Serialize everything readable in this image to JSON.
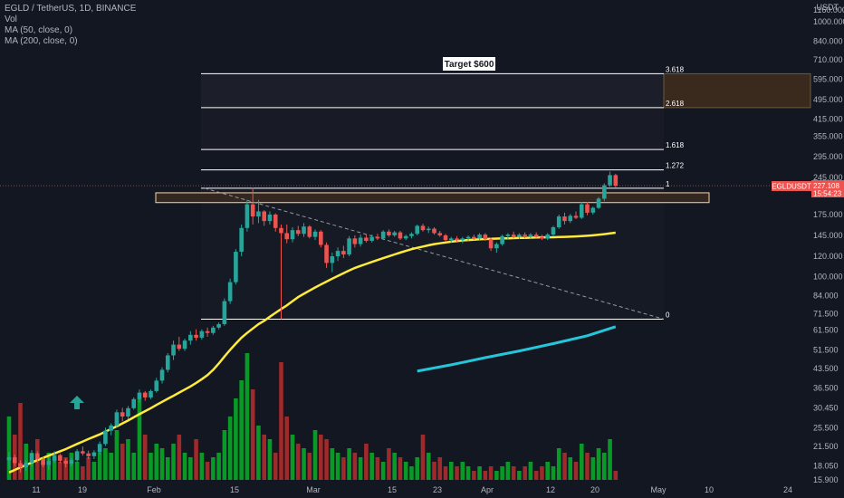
{
  "legend": {
    "title": "EGLD / TetherUS, 1D, BINANCE",
    "vol": "Vol",
    "ma50": "MA (50, close, 0)",
    "ma200": "MA (200, close, 0)"
  },
  "price_badge": {
    "symbol": "EGLDUSDT",
    "price": "227.108",
    "countdown": "15:54:23",
    "color": "#ef5350"
  },
  "target_label": "Target $600",
  "currency": "USDT",
  "colors": {
    "background": "#131722",
    "up": "#26a69a",
    "down": "#ef5350",
    "vol_up": "#089926",
    "vol_down": "#9e2a2b",
    "ma50": "#ffeb3b",
    "ma200": "#26c6da",
    "zone_fill": "#3a2a1e",
    "zone_border": "#f5d6a8",
    "grid": "#1e222d",
    "arrow": "#26a69a"
  },
  "chart_data": {
    "type": "candlestick",
    "scale": "log",
    "y_ticks": [
      1160.0,
      1000.0,
      840.0,
      710.0,
      595.0,
      495.0,
      415.0,
      355.0,
      295.0,
      245.0,
      210.0,
      175.0,
      145.0,
      120.0,
      100.0,
      84.0,
      71.5,
      61.5,
      51.5,
      43.5,
      36.5,
      30.45,
      25.5,
      21.5,
      18.05,
      15.9
    ],
    "x_ticks": [
      "11",
      "19",
      "Feb",
      "15",
      "Mar",
      "15",
      "23",
      "Apr",
      "12",
      "20",
      "May",
      "10",
      "24"
    ],
    "fib_levels": [
      {
        "label": "0",
        "value": 68
      },
      {
        "label": "1",
        "value": 222
      },
      {
        "label": "1.272",
        "value": 262
      },
      {
        "label": "1.618",
        "value": 315
      },
      {
        "label": "2.618",
        "value": 460
      },
      {
        "label": "3.618",
        "value": 625
      }
    ],
    "candles": [
      {
        "o": 19.0,
        "h": 20.5,
        "l": 17.5,
        "c": 19.5
      },
      {
        "o": 19.5,
        "h": 20.0,
        "l": 18.0,
        "c": 18.5
      },
      {
        "o": 18.5,
        "h": 19.0,
        "l": 17.0,
        "c": 17.8
      },
      {
        "o": 17.8,
        "h": 19.0,
        "l": 17.2,
        "c": 18.6
      },
      {
        "o": 18.6,
        "h": 20.8,
        "l": 18.0,
        "c": 20.2
      },
      {
        "o": 20.2,
        "h": 20.6,
        "l": 18.6,
        "c": 19.2
      },
      {
        "o": 19.2,
        "h": 19.6,
        "l": 17.8,
        "c": 18.2
      },
      {
        "o": 18.2,
        "h": 19.5,
        "l": 17.4,
        "c": 18.9
      },
      {
        "o": 18.9,
        "h": 20.6,
        "l": 18.5,
        "c": 19.9
      },
      {
        "o": 19.9,
        "h": 20.2,
        "l": 18.5,
        "c": 18.9
      },
      {
        "o": 18.9,
        "h": 19.3,
        "l": 17.8,
        "c": 18.4
      },
      {
        "o": 18.4,
        "h": 19.4,
        "l": 18.0,
        "c": 19.0
      },
      {
        "o": 19.0,
        "h": 21.0,
        "l": 18.7,
        "c": 20.6
      },
      {
        "o": 20.6,
        "h": 21.5,
        "l": 19.8,
        "c": 20.2
      },
      {
        "o": 20.2,
        "h": 20.7,
        "l": 19.2,
        "c": 19.7
      },
      {
        "o": 19.7,
        "h": 20.8,
        "l": 19.2,
        "c": 20.4
      },
      {
        "o": 20.4,
        "h": 22.5,
        "l": 20.0,
        "c": 22.0
      },
      {
        "o": 22.0,
        "h": 25.5,
        "l": 21.6,
        "c": 24.8
      },
      {
        "o": 24.8,
        "h": 26.5,
        "l": 23.8,
        "c": 26.0
      },
      {
        "o": 26.0,
        "h": 30.0,
        "l": 25.5,
        "c": 29.3
      },
      {
        "o": 29.3,
        "h": 30.5,
        "l": 27.0,
        "c": 28.2
      },
      {
        "o": 28.2,
        "h": 31.0,
        "l": 27.5,
        "c": 30.4
      },
      {
        "o": 30.4,
        "h": 33.5,
        "l": 30.0,
        "c": 33.0
      },
      {
        "o": 33.0,
        "h": 36.0,
        "l": 32.0,
        "c": 35.0
      },
      {
        "o": 35.0,
        "h": 35.5,
        "l": 32.5,
        "c": 33.5
      },
      {
        "o": 33.5,
        "h": 36.0,
        "l": 33.0,
        "c": 35.5
      },
      {
        "o": 35.5,
        "h": 40.0,
        "l": 35.0,
        "c": 39.0
      },
      {
        "o": 39.0,
        "h": 44.0,
        "l": 38.0,
        "c": 43.0
      },
      {
        "o": 43.0,
        "h": 50.0,
        "l": 42.0,
        "c": 49.0
      },
      {
        "o": 49.0,
        "h": 56.0,
        "l": 47.0,
        "c": 54.0
      },
      {
        "o": 54.0,
        "h": 58.0,
        "l": 51.0,
        "c": 52.0
      },
      {
        "o": 52.0,
        "h": 57.0,
        "l": 51.0,
        "c": 56.0
      },
      {
        "o": 56.0,
        "h": 61.0,
        "l": 54.0,
        "c": 59.0
      },
      {
        "o": 59.0,
        "h": 62.0,
        "l": 56.0,
        "c": 57.5
      },
      {
        "o": 57.5,
        "h": 62.0,
        "l": 56.5,
        "c": 61.0
      },
      {
        "o": 61.0,
        "h": 63.0,
        "l": 58.0,
        "c": 60.0
      },
      {
        "o": 60.0,
        "h": 64.0,
        "l": 59.0,
        "c": 63.0
      },
      {
        "o": 63.0,
        "h": 66.0,
        "l": 62.0,
        "c": 65.0
      },
      {
        "o": 65.0,
        "h": 82.0,
        "l": 64.0,
        "c": 80.0
      },
      {
        "o": 80.0,
        "h": 98.0,
        "l": 78.0,
        "c": 95.0
      },
      {
        "o": 95.0,
        "h": 128.0,
        "l": 93.0,
        "c": 125.0
      },
      {
        "o": 125.0,
        "h": 160.0,
        "l": 120.0,
        "c": 155.0
      },
      {
        "o": 155.0,
        "h": 200.0,
        "l": 150.0,
        "c": 192.0
      },
      {
        "o": 192.0,
        "h": 223.0,
        "l": 160.0,
        "c": 172.0
      },
      {
        "o": 172.0,
        "h": 200.0,
        "l": 162.0,
        "c": 180.0
      },
      {
        "o": 180.0,
        "h": 182.0,
        "l": 158.0,
        "c": 165.0
      },
      {
        "o": 165.0,
        "h": 180.0,
        "l": 160.0,
        "c": 175.0
      },
      {
        "o": 175.0,
        "h": 177.0,
        "l": 150.0,
        "c": 155.0
      },
      {
        "o": 155.0,
        "h": 160.0,
        "l": 68.0,
        "c": 148.0
      },
      {
        "o": 148.0,
        "h": 160.0,
        "l": 135.0,
        "c": 140.0
      },
      {
        "o": 140.0,
        "h": 156.0,
        "l": 136.0,
        "c": 152.0
      },
      {
        "o": 152.0,
        "h": 158.0,
        "l": 144.0,
        "c": 147.0
      },
      {
        "o": 147.0,
        "h": 162.0,
        "l": 143.0,
        "c": 157.0
      },
      {
        "o": 157.0,
        "h": 159.0,
        "l": 141.0,
        "c": 143.0
      },
      {
        "o": 143.0,
        "h": 153.0,
        "l": 139.0,
        "c": 150.0
      },
      {
        "o": 150.0,
        "h": 152.0,
        "l": 130.0,
        "c": 133.0
      },
      {
        "o": 133.0,
        "h": 136.0,
        "l": 108.0,
        "c": 113.0
      },
      {
        "o": 113.0,
        "h": 124.0,
        "l": 104.0,
        "c": 120.0
      },
      {
        "o": 120.0,
        "h": 130.0,
        "l": 115.0,
        "c": 126.0
      },
      {
        "o": 126.0,
        "h": 132.0,
        "l": 118.0,
        "c": 122.0
      },
      {
        "o": 122.0,
        "h": 144.0,
        "l": 120.0,
        "c": 141.0
      },
      {
        "o": 141.0,
        "h": 145.0,
        "l": 130.0,
        "c": 134.0
      },
      {
        "o": 134.0,
        "h": 146.0,
        "l": 131.0,
        "c": 142.0
      },
      {
        "o": 142.0,
        "h": 146.0,
        "l": 136.0,
        "c": 138.0
      },
      {
        "o": 138.0,
        "h": 146.0,
        "l": 136.0,
        "c": 143.0
      },
      {
        "o": 143.0,
        "h": 147.0,
        "l": 139.0,
        "c": 141.0
      },
      {
        "o": 141.0,
        "h": 152.0,
        "l": 139.0,
        "c": 150.0
      },
      {
        "o": 150.0,
        "h": 153.0,
        "l": 143.0,
        "c": 145.0
      },
      {
        "o": 145.0,
        "h": 151.0,
        "l": 143.0,
        "c": 149.0
      },
      {
        "o": 149.0,
        "h": 151.0,
        "l": 139.0,
        "c": 141.0
      },
      {
        "o": 141.0,
        "h": 146.0,
        "l": 139.0,
        "c": 144.0
      },
      {
        "o": 144.0,
        "h": 149.0,
        "l": 141.0,
        "c": 147.0
      },
      {
        "o": 147.0,
        "h": 160.0,
        "l": 145.0,
        "c": 158.0
      },
      {
        "o": 158.0,
        "h": 161.0,
        "l": 150.0,
        "c": 152.0
      },
      {
        "o": 152.0,
        "h": 157.0,
        "l": 148.0,
        "c": 154.0
      },
      {
        "o": 154.0,
        "h": 156.0,
        "l": 146.0,
        "c": 148.0
      },
      {
        "o": 148.0,
        "h": 151.0,
        "l": 143.0,
        "c": 145.0
      },
      {
        "o": 145.0,
        "h": 147.0,
        "l": 137.0,
        "c": 139.0
      },
      {
        "o": 139.0,
        "h": 143.0,
        "l": 136.0,
        "c": 141.0
      },
      {
        "o": 141.0,
        "h": 144.0,
        "l": 137.0,
        "c": 139.0
      },
      {
        "o": 139.0,
        "h": 143.0,
        "l": 135.0,
        "c": 141.0
      },
      {
        "o": 141.0,
        "h": 145.0,
        "l": 138.0,
        "c": 143.0
      },
      {
        "o": 143.0,
        "h": 146.0,
        "l": 139.0,
        "c": 141.0
      },
      {
        "o": 141.0,
        "h": 148.0,
        "l": 139.0,
        "c": 146.0
      },
      {
        "o": 146.0,
        "h": 148.0,
        "l": 138.0,
        "c": 140.0
      },
      {
        "o": 140.0,
        "h": 142.0,
        "l": 126.0,
        "c": 129.0
      },
      {
        "o": 129.0,
        "h": 136.0,
        "l": 124.0,
        "c": 134.0
      },
      {
        "o": 134.0,
        "h": 146.0,
        "l": 132.0,
        "c": 144.0
      },
      {
        "o": 144.0,
        "h": 148.0,
        "l": 140.0,
        "c": 146.0
      },
      {
        "o": 146.0,
        "h": 150.0,
        "l": 141.0,
        "c": 143.0
      },
      {
        "o": 143.0,
        "h": 148.0,
        "l": 140.0,
        "c": 146.0
      },
      {
        "o": 146.0,
        "h": 149.0,
        "l": 141.0,
        "c": 144.0
      },
      {
        "o": 144.0,
        "h": 148.0,
        "l": 140.0,
        "c": 146.0
      },
      {
        "o": 146.0,
        "h": 149.0,
        "l": 142.0,
        "c": 143.0
      },
      {
        "o": 143.0,
        "h": 146.0,
        "l": 139.0,
        "c": 141.0
      },
      {
        "o": 141.0,
        "h": 148.0,
        "l": 139.0,
        "c": 146.0
      },
      {
        "o": 146.0,
        "h": 158.0,
        "l": 144.0,
        "c": 156.0
      },
      {
        "o": 156.0,
        "h": 175.0,
        "l": 154.0,
        "c": 172.0
      },
      {
        "o": 172.0,
        "h": 178.0,
        "l": 160.0,
        "c": 165.0
      },
      {
        "o": 165.0,
        "h": 176.0,
        "l": 162.0,
        "c": 173.0
      },
      {
        "o": 173.0,
        "h": 180.0,
        "l": 168.0,
        "c": 170.0
      },
      {
        "o": 170.0,
        "h": 196.0,
        "l": 168.0,
        "c": 192.0
      },
      {
        "o": 192.0,
        "h": 196.0,
        "l": 174.0,
        "c": 178.0
      },
      {
        "o": 178.0,
        "h": 188.0,
        "l": 175.0,
        "c": 186.0
      },
      {
        "o": 186.0,
        "h": 205.0,
        "l": 184.0,
        "c": 202.0
      },
      {
        "o": 202.0,
        "h": 232.0,
        "l": 198.0,
        "c": 228.0
      },
      {
        "o": 228.0,
        "h": 258.0,
        "l": 225.0,
        "c": 250.0
      },
      {
        "o": 250.0,
        "h": 253.0,
        "l": 224.0,
        "c": 227.108
      }
    ],
    "volumes": [
      0.7,
      0.5,
      0.85,
      0.4,
      0.3,
      0.45,
      0.25,
      0.3,
      0.25,
      0.2,
      0.25,
      0.3,
      0.2,
      0.15,
      0.25,
      0.2,
      0.3,
      0.35,
      0.3,
      0.55,
      0.4,
      0.45,
      0.3,
      0.9,
      0.5,
      0.3,
      0.4,
      0.35,
      0.25,
      0.4,
      0.5,
      0.3,
      0.25,
      0.45,
      0.3,
      0.2,
      0.25,
      0.3,
      0.55,
      0.7,
      0.9,
      1.1,
      1.4,
      1.0,
      0.6,
      0.5,
      0.45,
      0.3,
      1.3,
      0.7,
      0.5,
      0.4,
      0.35,
      0.3,
      0.55,
      0.5,
      0.45,
      0.35,
      0.3,
      0.25,
      0.35,
      0.3,
      0.25,
      0.4,
      0.3,
      0.25,
      0.2,
      0.35,
      0.3,
      0.25,
      0.2,
      0.15,
      0.25,
      0.5,
      0.3,
      0.2,
      0.25,
      0.15,
      0.2,
      0.15,
      0.2,
      0.15,
      0.1,
      0.15,
      0.1,
      0.15,
      0.1,
      0.15,
      0.2,
      0.15,
      0.1,
      0.15,
      0.2,
      0.1,
      0.15,
      0.2,
      0.15,
      0.35,
      0.3,
      0.25,
      0.2,
      0.4,
      0.3,
      0.25,
      0.35,
      0.3,
      0.45,
      0.1
    ],
    "ma50": [
      17.0,
      17.4,
      17.8,
      18.2,
      18.6,
      19.0,
      19.4,
      19.8,
      20.2,
      20.6,
      21.0,
      21.5,
      22.0,
      22.5,
      23.0,
      23.5,
      24.0,
      24.6,
      25.2,
      25.8,
      26.5,
      27.2,
      28.0,
      28.8,
      29.6,
      30.4,
      31.3,
      32.2,
      33.1,
      34.0,
      35.0,
      36.0,
      37.0,
      38.2,
      39.5,
      41.0,
      43.0,
      45.5,
      48.5,
      51.5,
      54.5,
      57.5,
      60.0,
      62.5,
      65.0,
      67.0,
      69.5,
      72.0,
      74.5,
      77.0,
      80.0,
      83.0,
      85.5,
      88.0,
      90.5,
      93.0,
      95.5,
      98.0,
      100.5,
      103.0,
      105.5,
      108.0,
      110.0,
      112.0,
      114.0,
      116.0,
      118.0,
      120.0,
      122.0,
      124.0,
      126.0,
      128.0,
      129.5,
      131.0,
      132.5,
      134.0,
      135.0,
      136.0,
      137.0,
      137.8,
      138.5,
      139.0,
      139.5,
      140.0,
      140.3,
      140.5,
      140.8,
      141.0,
      141.2,
      141.4,
      141.6,
      141.8,
      142.0,
      142.2,
      142.4,
      142.5,
      142.6,
      142.8,
      143.0,
      143.3,
      143.6,
      144.0,
      144.5,
      145.0,
      145.8,
      146.6,
      147.5,
      148.5
    ],
    "ma200": [
      {
        "i": 72,
        "v": 42.5
      },
      {
        "i": 78,
        "v": 45.0
      },
      {
        "i": 84,
        "v": 48.0
      },
      {
        "i": 90,
        "v": 51.0
      },
      {
        "i": 96,
        "v": 54.5
      },
      {
        "i": 102,
        "v": 58.5
      },
      {
        "i": 107,
        "v": 63.5
      }
    ]
  }
}
